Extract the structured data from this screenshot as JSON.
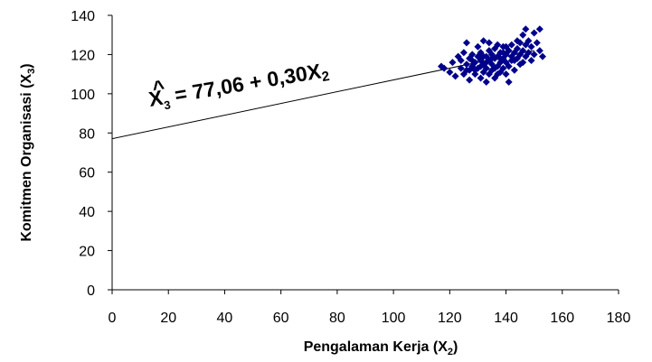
{
  "chart_data": {
    "type": "scatter",
    "title": "",
    "xlabel_main": "Pengalaman Kerja (X",
    "xlabel_sub": "2",
    "xlabel_end": ")",
    "ylabel_main": "Komitmen Organisasi (X",
    "ylabel_sub": "3",
    "ylabel_end": ")",
    "xlim": [
      0,
      180
    ],
    "ylim": [
      0,
      140
    ],
    "xticks": [
      0,
      20,
      40,
      60,
      80,
      100,
      120,
      140,
      160,
      180
    ],
    "yticks": [
      0,
      20,
      40,
      60,
      80,
      100,
      120,
      140
    ],
    "grid": false,
    "legend": "none",
    "marker": "diamond",
    "marker_color": "#00008B",
    "line_color": "#000000",
    "regression": {
      "intercept": 77.06,
      "slope": 0.3,
      "x_range": [
        0,
        150
      ]
    },
    "equation": {
      "yhat": "X",
      "yhat_sub": "3",
      "rhs_main": " = 77,06 + 0,30X",
      "rhs_sub": "2"
    },
    "points": [
      [
        117,
        114
      ],
      [
        118,
        113
      ],
      [
        120,
        111
      ],
      [
        121,
        116
      ],
      [
        122,
        109
      ],
      [
        123,
        119
      ],
      [
        124,
        113
      ],
      [
        124,
        117
      ],
      [
        125,
        121
      ],
      [
        125,
        110
      ],
      [
        126,
        126
      ],
      [
        126,
        115
      ],
      [
        127,
        107
      ],
      [
        127,
        118
      ],
      [
        127,
        112
      ],
      [
        128,
        120
      ],
      [
        128,
        114
      ],
      [
        129,
        116
      ],
      [
        129,
        110
      ],
      [
        130,
        124
      ],
      [
        130,
        119
      ],
      [
        130,
        113
      ],
      [
        131,
        108
      ],
      [
        131,
        117
      ],
      [
        131,
        121
      ],
      [
        132,
        115
      ],
      [
        132,
        111
      ],
      [
        132,
        127
      ],
      [
        133,
        119
      ],
      [
        133,
        113
      ],
      [
        133,
        106
      ],
      [
        134,
        117
      ],
      [
        134,
        122
      ],
      [
        134,
        110
      ],
      [
        135,
        115
      ],
      [
        135,
        120
      ],
      [
        135,
        112
      ],
      [
        136,
        118
      ],
      [
        136,
        108
      ],
      [
        136,
        123
      ],
      [
        137,
        114
      ],
      [
        137,
        119
      ],
      [
        137,
        125
      ],
      [
        138,
        116
      ],
      [
        138,
        111
      ],
      [
        138,
        121
      ],
      [
        139,
        113
      ],
      [
        139,
        118
      ],
      [
        139,
        124
      ],
      [
        140,
        110
      ],
      [
        140,
        116
      ],
      [
        140,
        120
      ],
      [
        141,
        106
      ],
      [
        141,
        122
      ],
      [
        141,
        114
      ],
      [
        142,
        119
      ],
      [
        142,
        125
      ],
      [
        142,
        117
      ],
      [
        143,
        121
      ],
      [
        143,
        112
      ],
      [
        144,
        118
      ],
      [
        144,
        123
      ],
      [
        145,
        126
      ],
      [
        145,
        120
      ],
      [
        145,
        115
      ],
      [
        146,
        122
      ],
      [
        146,
        130
      ],
      [
        147,
        119
      ],
      [
        147,
        125
      ],
      [
        147,
        133
      ],
      [
        148,
        121
      ],
      [
        148,
        127
      ],
      [
        149,
        124
      ],
      [
        149,
        117
      ],
      [
        150,
        131
      ],
      [
        150,
        120
      ],
      [
        151,
        126
      ],
      [
        152,
        122
      ],
      [
        152,
        133
      ],
      [
        153,
        119
      ],
      [
        129,
        112
      ],
      [
        131,
        114
      ],
      [
        133,
        116
      ],
      [
        135,
        118
      ],
      [
        128,
        117
      ],
      [
        136,
        113
      ],
      [
        138,
        118
      ],
      [
        140,
        124
      ],
      [
        126,
        112
      ],
      [
        134,
        126
      ],
      [
        137,
        110
      ],
      [
        139,
        121
      ],
      [
        143,
        117
      ],
      [
        146,
        116
      ],
      [
        144,
        127
      ],
      [
        132,
        119
      ]
    ]
  }
}
